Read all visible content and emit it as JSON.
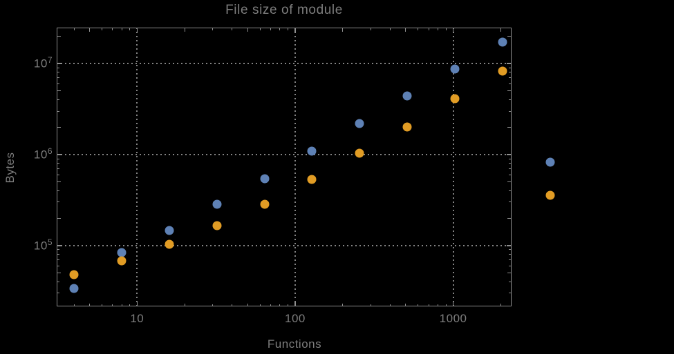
{
  "title": "File size of module",
  "colors": {
    "background": "#000000",
    "frame": "#8f8f8f",
    "grid": "#848484",
    "text": "#7d7d7d",
    "series_blue": "#5e81b5",
    "series_orange": "#e19c24"
  },
  "chart_data": {
    "type": "scatter",
    "title": "File size of module",
    "xlabel": "Functions",
    "ylabel": "Bytes",
    "x_scale": "log",
    "y_scale": "log",
    "xlim": [
      3.1,
      2340
    ],
    "ylim": [
      21500,
      24800000
    ],
    "grid": "dotted gridlines at major ticks",
    "legend_position": "none",
    "x_ticks": [
      {
        "value": 10,
        "label": "10"
      },
      {
        "value": 100,
        "label": "100"
      },
      {
        "value": 1000,
        "label": "1000"
      }
    ],
    "y_ticks": [
      {
        "value": 100000,
        "base": "10",
        "exponent": "5"
      },
      {
        "value": 1000000,
        "base": "10",
        "exponent": "6"
      },
      {
        "value": 10000000,
        "base": "10",
        "exponent": "7"
      }
    ],
    "x": [
      4,
      8,
      16,
      32,
      64,
      128,
      256,
      512,
      1024,
      2048,
      4096
    ],
    "series": [
      {
        "name": "blue-series",
        "color": "#5e81b5",
        "values": [
          34000,
          84000,
          147000,
          285000,
          540000,
          1100000,
          2200000,
          4400000,
          8700000,
          17200000,
          830000
        ]
      },
      {
        "name": "orange-series",
        "color": "#e19c24",
        "values": [
          48000,
          68000,
          104000,
          166000,
          285000,
          530000,
          1040000,
          2000000,
          4100000,
          8300000,
          360000
        ]
      }
    ]
  }
}
